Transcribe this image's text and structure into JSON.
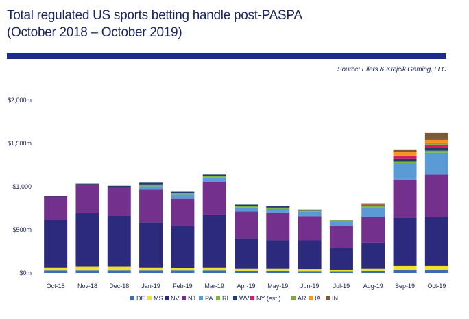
{
  "header": {
    "title_line1": "Total regulated US sports betting handle post-PASPA",
    "title_line2": "(October 2018 – October 2019)",
    "source": "Source: Eilers & Krejcik Gaming, LLC"
  },
  "chart_data": {
    "type": "bar",
    "stacked": true,
    "title": "Total regulated US sports betting handle post-PASPA (October 2018 – October 2019)",
    "xlabel": "",
    "ylabel": "",
    "ylim": [
      0,
      2000
    ],
    "y_ticks": [
      0,
      500,
      1000,
      1500,
      2000
    ],
    "y_tick_labels": [
      "$0m",
      "$500m",
      "$1,000",
      "$1,500m",
      "$2,000m"
    ],
    "legend_position": "bottom",
    "categories": [
      "Oct-18",
      "Nov-18",
      "Dec-18",
      "Jan-19",
      "Feb-19",
      "Mar-19",
      "Apr-19",
      "May-19",
      "Jun-19",
      "Jul-19",
      "Aug-19",
      "Sep-19",
      "Oct-19"
    ],
    "series": [
      {
        "name": "DE",
        "color": "#3a6fb5",
        "values": [
          30,
          30,
          30,
          30,
          30,
          30,
          25,
          25,
          22,
          20,
          25,
          35,
          35
        ]
      },
      {
        "name": "MS",
        "color": "#f2e12a",
        "values": [
          35,
          45,
          45,
          35,
          30,
          35,
          25,
          25,
          25,
          20,
          25,
          45,
          45
        ]
      },
      {
        "name": "NV",
        "color": "#2b2a7c",
        "values": [
          550,
          620,
          590,
          520,
          480,
          610,
          350,
          330,
          330,
          250,
          300,
          560,
          570
        ]
      },
      {
        "name": "NJ",
        "color": "#73308c",
        "values": [
          270,
          330,
          320,
          380,
          320,
          380,
          310,
          320,
          280,
          250,
          300,
          440,
          490
        ]
      },
      {
        "name": "PA",
        "color": "#5b9bd5",
        "values": [
          0,
          0,
          0,
          40,
          50,
          50,
          50,
          40,
          55,
          55,
          110,
          190,
          250
        ]
      },
      {
        "name": "RI",
        "color": "#7cb342",
        "values": [
          0,
          0,
          0,
          20,
          15,
          15,
          15,
          15,
          15,
          15,
          15,
          20,
          25
        ]
      },
      {
        "name": "WV",
        "color": "#1f3b6b",
        "values": [
          5,
          10,
          25,
          20,
          15,
          20,
          15,
          15,
          5,
          5,
          5,
          30,
          35
        ]
      },
      {
        "name": "NY (est.)",
        "color": "#d81b60",
        "values": [
          0,
          0,
          0,
          0,
          0,
          0,
          0,
          0,
          0,
          0,
          10,
          30,
          35
        ]
      },
      {
        "name": "AR",
        "color": "#80a643",
        "values": [
          0,
          0,
          0,
          0,
          0,
          0,
          0,
          0,
          0,
          0,
          5,
          10,
          15
        ]
      },
      {
        "name": "IA",
        "color": "#f7941d",
        "values": [
          0,
          0,
          0,
          0,
          0,
          0,
          0,
          0,
          0,
          0,
          5,
          40,
          40
        ]
      },
      {
        "name": "IN",
        "color": "#7b5a3a",
        "values": [
          0,
          0,
          0,
          0,
          0,
          0,
          0,
          0,
          0,
          0,
          5,
          30,
          80
        ]
      }
    ]
  }
}
